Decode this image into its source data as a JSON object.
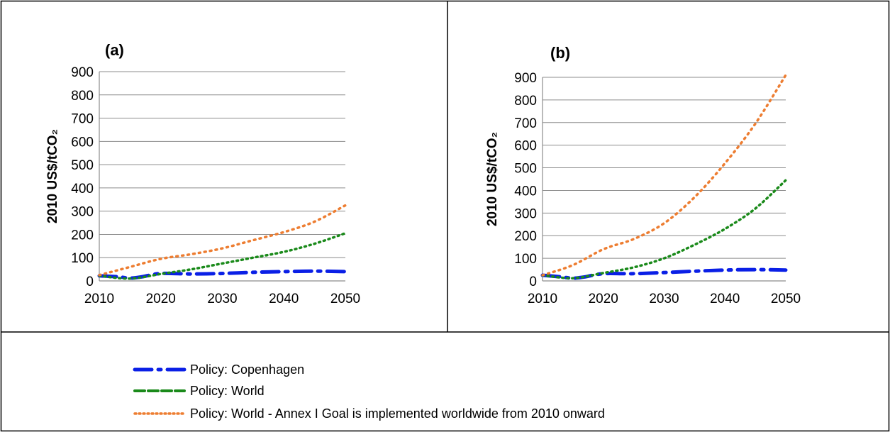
{
  "colors": {
    "copenhagen": "#0a1fe6",
    "world": "#1a8a1a",
    "annex": "#ed7d31",
    "grid": "#8c8c8c",
    "border": "#000000"
  },
  "legend": [
    {
      "key": "copenhagen",
      "label": "Policy: Copenhagen",
      "dash": "dash-dot"
    },
    {
      "key": "world",
      "label": "Policy: World",
      "dash": "dashed"
    },
    {
      "key": "annex",
      "label": "Policy: World - Annex I Goal is implemented worldwide from 2010 onward",
      "dash": "dotted"
    }
  ],
  "chart_data": [
    {
      "type": "line",
      "title": "(a)",
      "ylabel": "2010 US$/tCO₂",
      "xlabel": "",
      "xlim": [
        2010,
        2050
      ],
      "ylim": [
        0,
        900
      ],
      "x_ticks": [
        "2010",
        "2020",
        "2030",
        "2040",
        "2050"
      ],
      "y_ticks": [
        "0",
        "100",
        "200",
        "300",
        "400",
        "500",
        "600",
        "700",
        "800",
        "900"
      ],
      "grid": true,
      "series": [
        {
          "key": "copenhagen",
          "name": "Policy: Copenhagen",
          "x": [
            2010,
            2013,
            2015,
            2017,
            2020,
            2025,
            2030,
            2035,
            2040,
            2045,
            2050
          ],
          "y": [
            22,
            18,
            12,
            18,
            32,
            30,
            32,
            37,
            40,
            42,
            40
          ]
        },
        {
          "key": "world",
          "name": "Policy: World",
          "x": [
            2010,
            2015,
            2020,
            2025,
            2030,
            2035,
            2040,
            2045,
            2050
          ],
          "y": [
            22,
            10,
            30,
            50,
            75,
            100,
            125,
            160,
            205
          ]
        },
        {
          "key": "annex",
          "name": "Policy: World - Annex I Goal is implemented worldwide from 2010 onward",
          "x": [
            2010,
            2015,
            2020,
            2025,
            2030,
            2035,
            2040,
            2045,
            2050
          ],
          "y": [
            25,
            60,
            95,
            115,
            140,
            175,
            210,
            255,
            325
          ]
        }
      ]
    },
    {
      "type": "line",
      "title": "(b)",
      "ylabel": "2010 US$/tCO₂",
      "xlabel": "",
      "xlim": [
        2010,
        2050
      ],
      "ylim": [
        0,
        900
      ],
      "x_ticks": [
        "2010",
        "2020",
        "2030",
        "2040",
        "2050"
      ],
      "y_ticks": [
        "0",
        "100",
        "200",
        "300",
        "400",
        "500",
        "600",
        "700",
        "800",
        "900"
      ],
      "grid": true,
      "series": [
        {
          "key": "copenhagen",
          "name": "Policy: Copenhagen",
          "x": [
            2010,
            2013,
            2015,
            2017,
            2020,
            2025,
            2030,
            2035,
            2040,
            2045,
            2050
          ],
          "y": [
            25,
            18,
            12,
            18,
            32,
            32,
            37,
            43,
            48,
            50,
            48
          ]
        },
        {
          "key": "world",
          "name": "Policy: World",
          "x": [
            2010,
            2015,
            2020,
            2025,
            2030,
            2035,
            2040,
            2045,
            2050
          ],
          "y": [
            25,
            12,
            35,
            60,
            100,
            160,
            230,
            320,
            445
          ]
        },
        {
          "key": "annex",
          "name": "Policy: World - Annex I Goal is implemented worldwide from 2010 onward",
          "x": [
            2010,
            2015,
            2020,
            2025,
            2030,
            2035,
            2040,
            2045,
            2050
          ],
          "y": [
            25,
            70,
            140,
            185,
            255,
            370,
            520,
            695,
            910
          ]
        }
      ]
    }
  ]
}
